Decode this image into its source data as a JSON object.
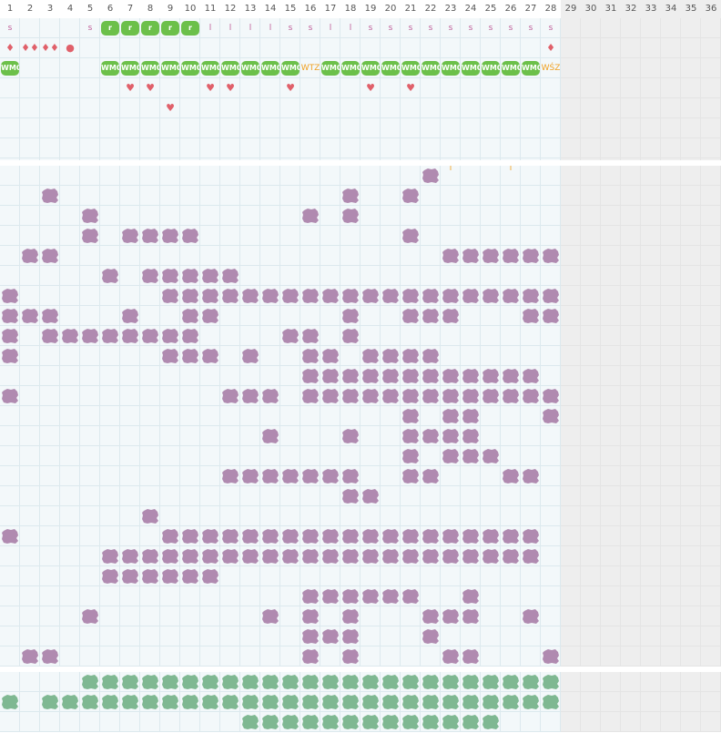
{
  "columns": [
    "1",
    "2",
    "3",
    "4",
    "5",
    "6",
    "7",
    "8",
    "9",
    "10",
    "11",
    "12",
    "13",
    "14",
    "15",
    "16",
    "17",
    "18",
    "19",
    "20",
    "21",
    "22",
    "23",
    "24",
    "25",
    "26",
    "27",
    "28",
    "29",
    "30",
    "31",
    "32",
    "33",
    "34",
    "35",
    "36"
  ],
  "active_days": 28,
  "colors": {
    "cell_bg": "#f3f8fa",
    "cell_border": "#dce9ee",
    "inactive_bg": "#eeeeee",
    "purple": "#b08ab0",
    "green_dark": "#7fb892",
    "green_bright": "#6cc04a",
    "red": "#e0606a",
    "orange": "#f0a020",
    "pink_letter": "#c0609a"
  },
  "top_rows": [
    {
      "name": "shift-letter-row",
      "cells": {
        "1": "s",
        "5": "s",
        "11": "l",
        "12": "l",
        "13": "l",
        "14": "l",
        "15": "s",
        "16": "s",
        "17": "l",
        "18": "l",
        "19": "s",
        "20": "s",
        "21": "s",
        "22": "s",
        "23": "s",
        "24": "s",
        "25": "s",
        "26": "s",
        "27": "s",
        "28": "s"
      },
      "badges": {
        "6": "r",
        "7": "r",
        "8": "r",
        "9": "r",
        "10": "r"
      }
    },
    {
      "name": "drop-row",
      "cells": {
        "1": "♦",
        "2": "♦♦",
        "3": "♦♦",
        "4": "●",
        "28": "♦"
      }
    },
    {
      "name": "code-row",
      "badges": {
        "1": "WMO",
        "6": "WMO",
        "7": "WMO",
        "8": "WMO",
        "9": "WMO",
        "10": "WMO",
        "11": "WMO",
        "12": "WMO",
        "13": "WMO",
        "14": "WMO",
        "15": "WMO",
        "17": "WMO",
        "18": "WMO",
        "19": "WMO",
        "20": "WMO",
        "21": "WMO",
        "22": "WMO",
        "23": "WMO",
        "24": "WMO",
        "25": "WMO",
        "26": "WMO",
        "27": "WMO"
      },
      "text": {
        "16": "WTZ",
        "28": "WŚZ"
      }
    },
    {
      "name": "heart-row-1",
      "cells": {
        "7": "♥",
        "8": "♥",
        "11": "♥",
        "12": "♥",
        "15": "♥",
        "19": "♥",
        "21": "♥"
      }
    },
    {
      "name": "heart-row-2",
      "cells": {
        "9": "♥"
      }
    },
    {
      "name": "empty-row-1",
      "cells": {}
    },
    {
      "name": "empty-row-2",
      "cells": {}
    },
    {
      "name": "tick-row",
      "cells": {
        "23": "ı",
        "26": "ı"
      }
    }
  ],
  "purple_rows": [
    [
      22
    ],
    [
      3,
      18,
      21
    ],
    [
      5,
      16,
      18
    ],
    [
      5,
      7,
      8,
      9,
      10,
      21
    ],
    [
      2,
      3,
      23,
      24,
      25,
      26,
      27,
      28
    ],
    [
      6,
      8,
      9,
      10,
      11,
      12
    ],
    [
      1,
      9,
      10,
      11,
      12,
      13,
      14,
      15,
      16,
      17,
      18,
      19,
      20,
      21,
      22,
      23,
      24,
      25,
      26,
      27,
      28
    ],
    [
      1,
      2,
      3,
      7,
      10,
      11,
      18,
      21,
      22,
      23,
      27,
      28
    ],
    [
      1,
      3,
      4,
      5,
      6,
      7,
      8,
      9,
      10,
      15,
      16,
      18
    ],
    [
      1,
      9,
      10,
      11,
      13,
      16,
      17,
      19,
      20,
      21,
      22
    ],
    [
      16,
      17,
      18,
      19,
      20,
      21,
      22,
      23,
      24,
      25,
      26,
      27
    ],
    [
      1,
      12,
      13,
      14,
      16,
      17,
      18,
      19,
      20,
      21,
      22,
      23,
      24,
      25,
      26,
      27,
      28
    ],
    [
      21,
      23,
      24,
      28
    ],
    [
      14,
      18,
      21,
      22,
      23,
      24
    ],
    [
      21,
      23,
      24,
      25
    ],
    [
      12,
      13,
      14,
      15,
      16,
      17,
      18,
      21,
      22,
      26,
      27
    ],
    [
      18,
      19
    ],
    [
      8
    ],
    [
      1,
      9,
      10,
      11,
      12,
      13,
      14,
      15,
      16,
      17,
      18,
      19,
      20,
      21,
      22,
      23,
      24,
      25,
      26,
      27
    ],
    [
      6,
      7,
      8,
      9,
      10,
      11,
      12,
      13,
      14,
      15,
      16,
      17,
      18,
      19,
      20,
      21,
      22,
      23,
      24,
      25,
      26,
      27
    ],
    [
      6,
      7,
      8,
      9,
      10,
      11
    ],
    [
      16,
      17,
      18,
      19,
      20,
      21,
      24
    ],
    [
      5,
      14,
      16,
      18,
      22,
      23,
      24,
      27
    ],
    [
      16,
      17,
      18,
      22
    ],
    [
      2,
      3,
      16,
      18,
      23,
      24,
      28
    ]
  ],
  "green_rows": [
    [
      5,
      6,
      7,
      8,
      9,
      10,
      11,
      12,
      13,
      14,
      15,
      16,
      17,
      18,
      19,
      20,
      21,
      22,
      23,
      24,
      25,
      26,
      27,
      28
    ],
    [
      1,
      3,
      4,
      5,
      6,
      7,
      8,
      9,
      10,
      11,
      12,
      13,
      14,
      15,
      16,
      17,
      18,
      19,
      20,
      21,
      22,
      23,
      24,
      25,
      26,
      27,
      28
    ],
    [
      13,
      14,
      15,
      16,
      17,
      18,
      19,
      20,
      21,
      22,
      23,
      24,
      25
    ]
  ]
}
